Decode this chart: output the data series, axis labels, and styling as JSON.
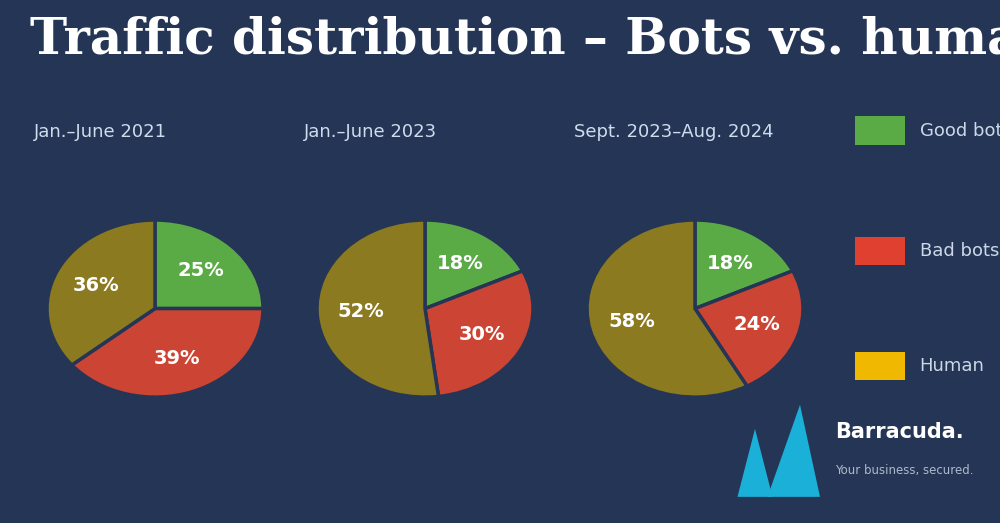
{
  "title": "Traffic distribution – Bots vs. humans",
  "background_color": "#253555",
  "title_color": "#ffffff",
  "title_fontsize": 36,
  "charts": [
    {
      "label": "Jan.–June 2021",
      "values": [
        25,
        39,
        36
      ],
      "start_angle": 90
    },
    {
      "label": "Jan.–June 2023",
      "values": [
        18,
        30,
        52
      ],
      "start_angle": 90
    },
    {
      "label": "Sept. 2023–Aug. 2024",
      "values": [
        18,
        24,
        58
      ],
      "start_angle": 90
    }
  ],
  "slice_colors": [
    "#5aaa46",
    "#cc4433",
    "#8b7a20"
  ],
  "legend_labels": [
    "Good bots",
    "Bad bots",
    "Human"
  ],
  "legend_colors": [
    "#5aaa46",
    "#e04030",
    "#f0b800"
  ],
  "wedge_edge_color": "#253555",
  "wedge_edge_width": 2.5,
  "pct_fontsize": 14,
  "pct_color": "#ffffff",
  "label_fontsize": 13,
  "label_color": "#ccddee",
  "human_yellow_border": "#f0b800",
  "good_green": "#5aaa46",
  "bad_red": "#cc4433",
  "human_fill": "#8b7a20",
  "fin_color": "#1ab0d8",
  "barracuda_color": "#ffffff",
  "barracuda_sub_color": "#aabbcc"
}
